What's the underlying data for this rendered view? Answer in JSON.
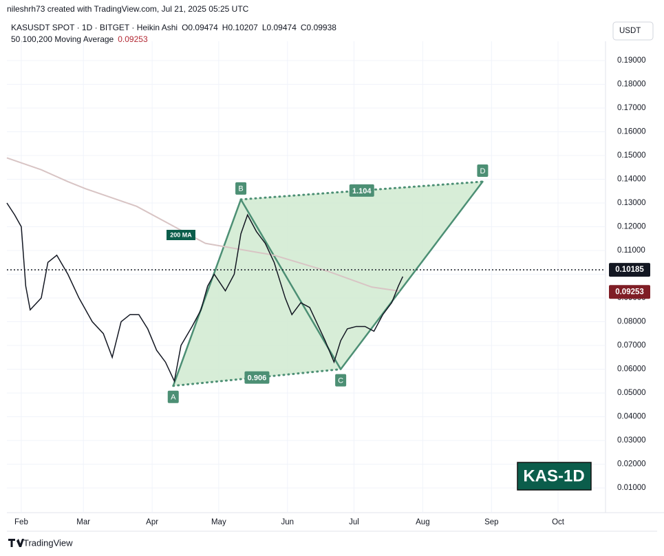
{
  "chart_data": {
    "type": "line",
    "attribution": "nileshrh73 created with TradingView.com, Jul 21, 2025 05:25 UTC",
    "title": "KASUSDT SPOT · 1D · BITGET · Heikin Ashi",
    "ohlc": [
      "O0.09474",
      "H0.10207",
      "L0.09474",
      "C0.09938"
    ],
    "indicator": "50,100,200 Moving Average",
    "indicator_value": 0.09253,
    "currency": "USDT",
    "ma_label": "200 MA",
    "watermark": "KAS-1D",
    "brand": "TradingView",
    "last_price": 0.10185,
    "price": {
      "color": "#131722",
      "x": [
        24.5,
        28,
        31,
        33,
        35,
        40,
        43,
        47,
        52,
        57,
        60,
        63,
        68,
        72,
        76,
        80,
        84,
        88,
        92,
        96,
        100,
        103,
        108,
        112,
        115,
        118,
        123,
        127,
        130,
        133,
        137,
        141,
        145,
        150,
        153,
        157,
        161,
        165,
        168,
        172,
        175,
        178,
        182,
        186,
        190,
        194,
        198,
        201,
        203
      ],
      "values": [
        0.13,
        0.125,
        0.12,
        0.095,
        0.085,
        0.09,
        0.105,
        0.108,
        0.1,
        0.09,
        0.085,
        0.08,
        0.075,
        0.065,
        0.08,
        0.083,
        0.083,
        0.077,
        0.068,
        0.063,
        0.055,
        0.07,
        0.078,
        0.085,
        0.095,
        0.1,
        0.093,
        0.1,
        0.117,
        0.125,
        0.118,
        0.113,
        0.105,
        0.09,
        0.083,
        0.088,
        0.086,
        0.078,
        0.072,
        0.063,
        0.072,
        0.077,
        0.078,
        0.078,
        0.076,
        0.083,
        0.088,
        0.095,
        0.099
      ]
    },
    "ma": {
      "color": "#d8c4c4",
      "x": [
        24.5,
        40,
        52,
        60,
        83,
        114,
        145,
        170,
        189,
        201.4
      ],
      "values": [
        0.149,
        0.144,
        0.139,
        0.136,
        0.1286,
        0.113,
        0.108,
        0.101,
        0.0946,
        0.0929
      ]
    },
    "pattern": {
      "color": "#4c8f74",
      "fill": "#d3ebd3",
      "points": [
        {
          "label": "A",
          "x": 99.5,
          "y": 0.053
        },
        {
          "label": "B",
          "x": 130,
          "y": 0.1315
        },
        {
          "label": "C",
          "x": 175,
          "y": 0.06
        },
        {
          "label": "D",
          "x": 239,
          "y": 0.139
        }
      ],
      "ratio_ac": 0.906,
      "ratio_bd": 1.104
    },
    "xlim": [
      24.5,
      294.4
    ],
    "xticks": [
      {
        "value": 31,
        "label": "Feb"
      },
      {
        "value": 59,
        "label": "Mar"
      },
      {
        "value": 90,
        "label": "Apr"
      },
      {
        "value": 120,
        "label": "May"
      },
      {
        "value": 151,
        "label": "Jun"
      },
      {
        "value": 181,
        "label": "Jul"
      },
      {
        "value": 212,
        "label": "Aug"
      },
      {
        "value": 243,
        "label": "Sep"
      },
      {
        "value": 273,
        "label": "Oct"
      }
    ],
    "ylim": [
      -0.0004,
      0.1981
    ],
    "yticks": [
      {
        "value": 0.01,
        "label": "0.01000"
      },
      {
        "value": 0.02,
        "label": "0.02000"
      },
      {
        "value": 0.03,
        "label": "0.03000"
      },
      {
        "value": 0.04,
        "label": "0.04000"
      },
      {
        "value": 0.05,
        "label": "0.05000"
      },
      {
        "value": 0.06,
        "label": "0.06000"
      },
      {
        "value": 0.07,
        "label": "0.07000"
      },
      {
        "value": 0.08,
        "label": "0.08000"
      },
      {
        "value": 0.09,
        "label": "0.09000"
      },
      {
        "value": 0.1,
        "label": "0.10000"
      },
      {
        "value": 0.11,
        "label": "0.11000"
      },
      {
        "value": 0.12,
        "label": "0.12000"
      },
      {
        "value": 0.13,
        "label": "0.13000"
      },
      {
        "value": 0.14,
        "label": "0.14000"
      },
      {
        "value": 0.15,
        "label": "0.15000"
      },
      {
        "value": 0.16,
        "label": "0.16000"
      },
      {
        "value": 0.17,
        "label": "0.17000"
      },
      {
        "value": 0.18,
        "label": "0.18000"
      },
      {
        "value": 0.19,
        "label": "0.19000"
      }
    ],
    "grid": true
  }
}
